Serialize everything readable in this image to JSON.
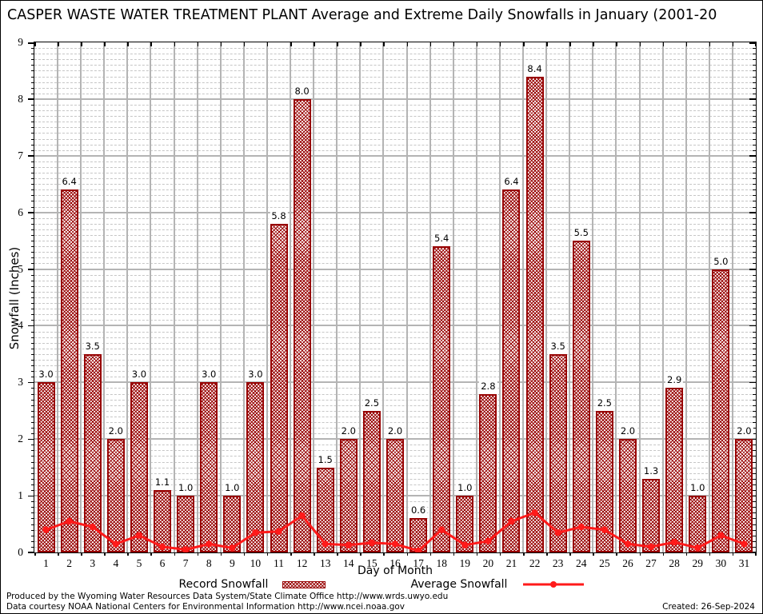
{
  "title": "CASPER WASTE WATER TREATMENT PLANT Average and Extreme Daily Snowfalls in January (2001-20",
  "legend": {
    "record_label": "Record Snowfall",
    "average_label": "Average Snowfall"
  },
  "footer": {
    "line1": "Produced by the Wyoming Water Resources Data System/State Climate Office http://www.wrds.uwyo.edu",
    "line2": "Data courtesy NOAA National Centers for Environmental Information http://www.ncei.noaa.gov",
    "created": "Created: 26-Sep-2024"
  },
  "colors": {
    "bar_hatch": "#970000",
    "average_line": "#ff1a1a",
    "grid_major": "#b4b4b4",
    "grid_minor": "#c6c6c6",
    "axis": "#000000"
  },
  "chart_data": {
    "type": "bar",
    "title": "CASPER WASTE WATER TREATMENT PLANT Average and Extreme Daily Snowfalls in January (2001-20",
    "xlabel": "Day of Month",
    "ylabel": "Snowfall (Inches)",
    "ylim": [
      0,
      9
    ],
    "y_major_ticks": [
      0,
      1,
      2,
      3,
      4,
      5,
      6,
      7,
      8,
      9
    ],
    "grid": true,
    "legend_position": "bottom",
    "categories": [
      1,
      2,
      3,
      4,
      5,
      6,
      7,
      8,
      9,
      10,
      11,
      12,
      13,
      14,
      15,
      16,
      17,
      18,
      19,
      20,
      21,
      22,
      23,
      24,
      25,
      26,
      27,
      28,
      29,
      30,
      31
    ],
    "series": [
      {
        "name": "Record Snowfall",
        "type": "bar",
        "values": [
          3.0,
          6.4,
          3.5,
          2.0,
          3.0,
          1.1,
          1.0,
          3.0,
          1.0,
          3.0,
          5.8,
          8.0,
          1.5,
          2.0,
          2.5,
          2.0,
          0.6,
          5.4,
          1.0,
          2.8,
          6.4,
          8.4,
          3.5,
          5.5,
          2.5,
          2.0,
          1.3,
          2.9,
          1.0,
          5.0,
          2.0
        ],
        "data_labels": [
          "3.0",
          "6.4",
          "3.5",
          "2.0",
          "3.0",
          "1.1",
          "1.0",
          "3.0",
          "1.0",
          "3.0",
          "5.8",
          "8.0",
          "1.5",
          "2.0",
          "2.5",
          "2.0",
          "0.6",
          "5.4",
          "1.0",
          "2.8",
          "6.4",
          "8.4",
          "3.5",
          "5.5",
          "2.5",
          "2.0",
          "1.3",
          "2.9",
          "1.0",
          "5.0",
          "2.0"
        ]
      },
      {
        "name": "Average Snowfall",
        "type": "line",
        "values": [
          0.4,
          0.55,
          0.45,
          0.15,
          0.3,
          0.1,
          0.05,
          0.15,
          0.08,
          0.35,
          0.37,
          0.65,
          0.15,
          0.13,
          0.17,
          0.15,
          0.03,
          0.4,
          0.13,
          0.2,
          0.55,
          0.7,
          0.35,
          0.45,
          0.4,
          0.15,
          0.1,
          0.18,
          0.08,
          0.3,
          0.15
        ]
      }
    ]
  }
}
